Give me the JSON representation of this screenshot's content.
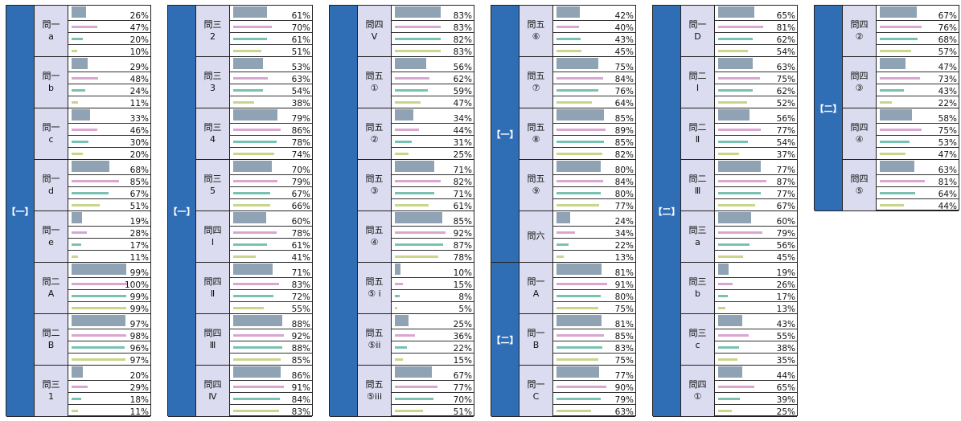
{
  "colors": [
    "#8fa3b4",
    "#d9a6d0",
    "#77c2b1",
    "#c8d58a"
  ],
  "chart_data": {
    "type": "bar",
    "panels": [
      {
        "sections": [
          {
            "label": "【一】",
            "span": 8
          }
        ],
        "groups": [
          {
            "label": [
              "問一",
              "a"
            ],
            "values": [
              26,
              47,
              20,
              10
            ]
          },
          {
            "label": [
              "問一",
              "b"
            ],
            "values": [
              29,
              48,
              24,
              11
            ]
          },
          {
            "label": [
              "問一",
              "c"
            ],
            "values": [
              33,
              46,
              30,
              20
            ]
          },
          {
            "label": [
              "問一",
              "d"
            ],
            "values": [
              68,
              85,
              67,
              51
            ]
          },
          {
            "label": [
              "問一",
              "e"
            ],
            "values": [
              19,
              28,
              17,
              11
            ]
          },
          {
            "label": [
              "問二",
              "A"
            ],
            "values": [
              99,
              100,
              99,
              99
            ]
          },
          {
            "label": [
              "問二",
              "B"
            ],
            "values": [
              97,
              98,
              96,
              97
            ]
          },
          {
            "label": [
              "問三",
              "1"
            ],
            "values": [
              20,
              29,
              18,
              11
            ]
          }
        ]
      },
      {
        "sections": [
          {
            "label": "【一】",
            "span": 8
          }
        ],
        "groups": [
          {
            "label": [
              "問三",
              "2"
            ],
            "values": [
              61,
              70,
              61,
              51
            ]
          },
          {
            "label": [
              "問三",
              "3"
            ],
            "values": [
              53,
              63,
              54,
              38
            ]
          },
          {
            "label": [
              "問三",
              "4"
            ],
            "values": [
              79,
              86,
              78,
              74
            ]
          },
          {
            "label": [
              "問三",
              "5"
            ],
            "values": [
              70,
              79,
              67,
              66
            ]
          },
          {
            "label": [
              "問四",
              "Ⅰ"
            ],
            "values": [
              60,
              78,
              61,
              41
            ]
          },
          {
            "label": [
              "問四",
              "Ⅱ"
            ],
            "values": [
              71,
              83,
              72,
              55
            ]
          },
          {
            "label": [
              "問四",
              "Ⅲ"
            ],
            "values": [
              88,
              92,
              88,
              85
            ]
          },
          {
            "label": [
              "問四",
              "Ⅳ"
            ],
            "values": [
              86,
              91,
              84,
              83
            ]
          }
        ]
      },
      {
        "sections": [
          {
            "label": "",
            "span": 8
          }
        ],
        "groups": [
          {
            "label": [
              "問四",
              "Ⅴ"
            ],
            "values": [
              83,
              83,
              82,
              83
            ]
          },
          {
            "label": [
              "問五",
              "①"
            ],
            "values": [
              56,
              62,
              59,
              47
            ]
          },
          {
            "label": [
              "問五",
              "②"
            ],
            "values": [
              34,
              44,
              31,
              25
            ]
          },
          {
            "label": [
              "問五",
              "③"
            ],
            "values": [
              71,
              82,
              71,
              61
            ]
          },
          {
            "label": [
              "問五",
              "④"
            ],
            "values": [
              85,
              92,
              87,
              78
            ]
          },
          {
            "label": [
              "問五",
              "⑤ i"
            ],
            "values": [
              10,
              15,
              8,
              5
            ]
          },
          {
            "label": [
              "問五",
              "⑤ii"
            ],
            "values": [
              25,
              36,
              22,
              15
            ]
          },
          {
            "label": [
              "問五",
              "⑤iii"
            ],
            "values": [
              67,
              77,
              70,
              51
            ]
          }
        ]
      },
      {
        "sections": [
          {
            "label": "【一】",
            "span": 5
          },
          {
            "label": "【二】",
            "span": 3
          }
        ],
        "groups": [
          {
            "label": [
              "問五",
              "⑥"
            ],
            "values": [
              42,
              40,
              43,
              45
            ]
          },
          {
            "label": [
              "問五",
              "⑦"
            ],
            "values": [
              75,
              84,
              76,
              64
            ]
          },
          {
            "label": [
              "問五",
              "⑧"
            ],
            "values": [
              85,
              89,
              85,
              82
            ]
          },
          {
            "label": [
              "問五",
              "⑨"
            ],
            "values": [
              80,
              84,
              80,
              77
            ]
          },
          {
            "label": [
              "問六"
            ],
            "values": [
              24,
              34,
              22,
              13
            ]
          },
          {
            "label": [
              "問一",
              "A"
            ],
            "values": [
              81,
              91,
              80,
              75
            ]
          },
          {
            "label": [
              "問一",
              "B"
            ],
            "values": [
              81,
              85,
              83,
              75
            ]
          },
          {
            "label": [
              "問一",
              "C"
            ],
            "values": [
              77,
              90,
              79,
              63
            ]
          }
        ]
      },
      {
        "sections": [
          {
            "label": "【二】",
            "span": 8
          }
        ],
        "groups": [
          {
            "label": [
              "問一",
              "D"
            ],
            "values": [
              65,
              81,
              62,
              54
            ]
          },
          {
            "label": [
              "問二",
              "Ⅰ"
            ],
            "values": [
              63,
              75,
              62,
              52
            ]
          },
          {
            "label": [
              "問二",
              "Ⅱ"
            ],
            "values": [
              56,
              77,
              54,
              37
            ]
          },
          {
            "label": [
              "問二",
              "Ⅲ"
            ],
            "values": [
              77,
              87,
              77,
              67
            ]
          },
          {
            "label": [
              "問三",
              "a"
            ],
            "values": [
              60,
              79,
              56,
              45
            ]
          },
          {
            "label": [
              "問三",
              "b"
            ],
            "values": [
              19,
              26,
              17,
              13
            ]
          },
          {
            "label": [
              "問三",
              "c"
            ],
            "values": [
              43,
              55,
              38,
              35
            ]
          },
          {
            "label": [
              "問四",
              "①"
            ],
            "values": [
              44,
              65,
              39,
              25
            ]
          }
        ]
      },
      {
        "sections": [
          {
            "label": "【二】",
            "span": 4
          }
        ],
        "groups": [
          {
            "label": [
              "問四",
              "②"
            ],
            "values": [
              67,
              76,
              68,
              57
            ]
          },
          {
            "label": [
              "問四",
              "③"
            ],
            "values": [
              47,
              73,
              43,
              22
            ]
          },
          {
            "label": [
              "問四",
              "④"
            ],
            "values": [
              58,
              75,
              53,
              47
            ]
          },
          {
            "label": [
              "問四",
              "⑤"
            ],
            "values": [
              63,
              81,
              64,
              44
            ]
          }
        ]
      }
    ]
  }
}
